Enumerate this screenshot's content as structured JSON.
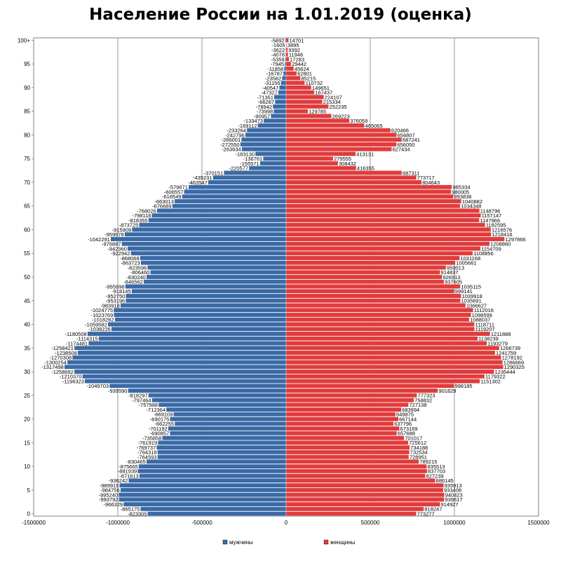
{
  "chart_data": {
    "type": "bar",
    "title": "Население России на 1.01.2019 (оценка)",
    "orientation": "horizontal",
    "grid": true,
    "legend_position": "bottom",
    "xlim": [
      -1500000,
      1500000
    ],
    "x_ticks": [
      -1500000,
      -1000000,
      -500000,
      0,
      500000,
      1000000,
      1500000
    ],
    "x_tick_labels": [
      "-1500000",
      "-1000000",
      "-500000",
      "0",
      "500000",
      "1000000",
      "1500000"
    ],
    "y_ticks": [
      "0",
      "5",
      "10",
      "15",
      "20",
      "25",
      "30",
      "35",
      "40",
      "45",
      "50",
      "55",
      "60",
      "65",
      "70",
      "75",
      "80",
      "85",
      "90",
      "95",
      "100+"
    ],
    "series": [
      {
        "name": "мужчины",
        "color": "#3a6aa6",
        "values": [
          -823305,
          -865175,
          -966329,
          -993792,
          -995240,
          -984756,
          -989915,
          -936242,
          -871613,
          -881939,
          -875665,
          -830465,
          -764593,
          -764318,
          -769737,
          -761919,
          -735858,
          -690857,
          -701192,
          -662255,
          -690175,
          -669109,
          -712364,
          -757988,
          -797464,
          -818297,
          -939590,
          -1049703,
          -1196323,
          -1210370,
          -1258692,
          -1317498,
          -1300254,
          -1270308,
          -1238508,
          -1258421,
          -1174481,
          -1114315,
          -1180508,
          -1038226,
          -1059582,
          -1018262,
          -1023769,
          -1024775,
          -983918,
          -953196,
          -952750,
          -918145,
          -955998,
          -846562,
          -830240,
          -806460,
          -823596,
          -863723,
          -868068,
          -922942,
          -942360,
          -976887,
          -1042291,
          -959678,
          -915909,
          -873725,
          -818355,
          -798118,
          -768026,
          -676689,
          -663013,
          -618549,
          -606557,
          -579671,
          -463547,
          -435231,
          -370151,
          -220577,
          -155571,
          -136761,
          -183130,
          -263634,
          -272550,
          -266001,
          -242796,
          -233264,
          -169112,
          -133473,
          -90957,
          -73998,
          -78942,
          -66287,
          -71351,
          -47327,
          -40547,
          -31156,
          -23562,
          -16787,
          -11858,
          -7945,
          -5359,
          -4078,
          -3622,
          -1605,
          -5892
        ]
      },
      {
        "name": "женщины",
        "color": "#e03c3c",
        "values": [
          773277,
          818247,
          914927,
          939617,
          940423,
          933408,
          935913,
          886145,
          827239,
          837703,
          835513,
          789215,
          728951,
          732534,
          734188,
          725612,
          701017,
          657688,
          673169,
          637796,
          667144,
          649875,
          683994,
          727138,
          758832,
          777323,
          901829,
          998185,
          1151302,
          1179322,
          1235444,
          1290325,
          1286669,
          1278192,
          1241759,
          1266739,
          1193279,
          1138239,
          1211888,
          1119207,
          1118711,
          1088037,
          1098599,
          1112016,
          1066627,
          1035691,
          1039918,
          999141,
          1035115,
          937605,
          926913,
          914837,
          950013,
          1005661,
          1031168,
          1108856,
          1154709,
          1208860,
          1297866,
          1218416,
          1216576,
          1182595,
          1147966,
          1157147,
          1148796,
          1034348,
          1040882,
          993836,
          980005,
          985334,
          804643,
          773717,
          687311,
          416355,
          308432,
          279555,
          413131,
          627434,
          656050,
          687241,
          656807,
          620466,
          465065,
          376059,
          269223,
          129785,
          252235,
          215334,
          224107,
          167437,
          149651,
          110732,
          85215,
          62801,
          45624,
          29442,
          17283,
          11946,
          9392,
          3895,
          14701
        ]
      }
    ],
    "value_labels_men": [
      "-823305",
      "-865175",
      "-966329",
      "-993792",
      "-995240",
      "-984756",
      "-989915",
      "-936242",
      "-871613",
      "-881939",
      "-875665",
      "-830465",
      "-764593",
      "-764318",
      "-769737",
      "-761919",
      "-735858",
      "-690857",
      "-701192",
      "-662255",
      "-690175",
      "-669109",
      "-712364",
      "-757988",
      "-797464",
      "-818297",
      "-939590",
      "-1049703",
      "-1196323",
      "-1210370",
      "-1258692",
      "-1317498",
      "-1300254",
      "-1270308",
      "-1238508",
      "-1258421",
      "-1174481",
      "-1114315",
      "-1180508",
      "-1038226",
      "-1059582",
      "-1018262",
      "-1023769",
      "-1024775",
      "-983918",
      "-953196",
      "-952750",
      "-918145",
      "-955998",
      "-846562",
      "-830240",
      "-806460",
      "-823596",
      "-863723",
      "-868068",
      "-922942",
      "-942360",
      "-976887",
      "-1042291",
      "-959678",
      "-915909",
      "-873725",
      "-818355",
      "-798118",
      "-768026",
      "-676689",
      "-663013",
      "-618549",
      "-606557",
      "-579671",
      "-463547",
      "-435231",
      "-370151",
      "-220577",
      "-155571",
      "-136761",
      "-183130",
      "-263634",
      "-272550",
      "-266001",
      "-242796",
      "-233264",
      "-169112",
      "-133473",
      "-90957",
      "-73998",
      "-78942",
      "-66287",
      "-71351",
      "-47327",
      "-40547",
      "-31156",
      "-23562",
      "-16787",
      "-11858",
      "-7945",
      "-5359",
      "-4078",
      "-3622",
      "-1605",
      "-5892"
    ],
    "value_labels_women": [
      "773277",
      "818247",
      "914927",
      "939617",
      "940423",
      "933408",
      "935913",
      "886145",
      "827239",
      "837703",
      "835513",
      "789215",
      "728951",
      "732534",
      "734188",
      "725612",
      "701017",
      "657688",
      "673169",
      "637796",
      "667144",
      "649875",
      "683994",
      "727138",
      "758832",
      "777323",
      "901829",
      "998185",
      "1151302",
      "1179322",
      "1235444",
      "1290325",
      "1286669",
      "1278192",
      "1241759",
      "1266739",
      "1193279",
      "1138239",
      "1211888",
      "1119207",
      "1118711",
      "1088037",
      "1098599",
      "1112016",
      "1066627",
      "1035691",
      "1039918",
      "999141",
      "1035115",
      "937605",
      "926913",
      "914837",
      "950013",
      "1005661",
      "1031168",
      "1108856",
      "1154709",
      "1208860",
      "1297866",
      "1218416",
      "1216576",
      "1182595",
      "1147966",
      "1157147",
      "1148796",
      "1034348",
      "1040882",
      "993836",
      "980005",
      "985334",
      "804643",
      "773717",
      "687311",
      "416355",
      "308432",
      "279555",
      "413131",
      "627434",
      "656050",
      "687241",
      "656807",
      "620466",
      "465065",
      "376059",
      "269223",
      "129785",
      "252235",
      "215334",
      "224107",
      "167437",
      "149651",
      "110732",
      "85215",
      "62801",
      "45624",
      "29442",
      "17283",
      "11946",
      "9392",
      "3895",
      "14701"
    ]
  }
}
